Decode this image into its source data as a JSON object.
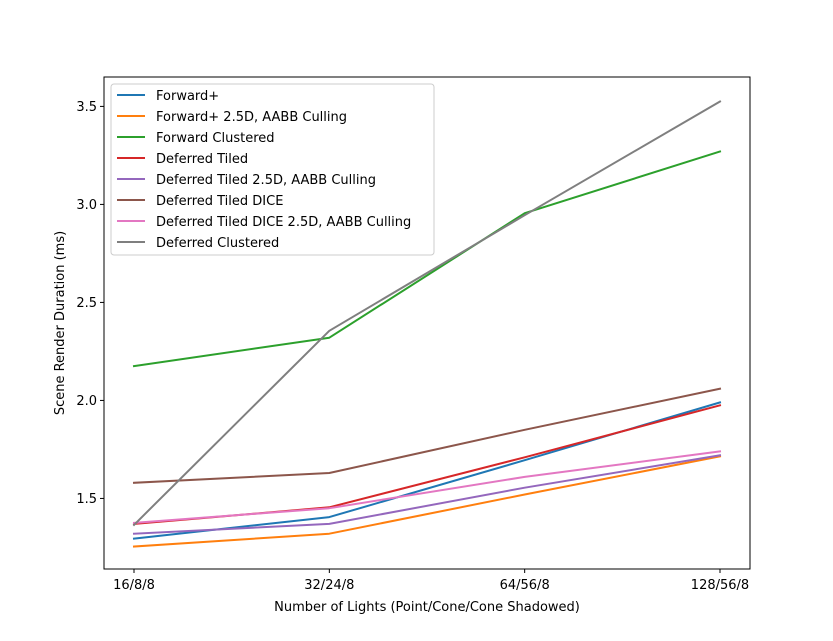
{
  "chart_data": {
    "type": "line",
    "categories": [
      "16/8/8",
      "32/24/8",
      "64/56/8",
      "128/56/8"
    ],
    "xlabel": "Number of Lights (Point/Cone/Cone Shadowed)",
    "ylabel": "Scene Render Duration (ms)",
    "ylim": [
      1.14,
      3.65
    ],
    "yticks": [
      1.5,
      2.0,
      2.5,
      3.0,
      3.5
    ],
    "ytick_labels": [
      "1.5",
      "2.0",
      "2.5",
      "3.0",
      "3.5"
    ],
    "grid": false,
    "legend_position": "top-left",
    "series": [
      {
        "name": "Forward+",
        "color": "#1f77b4",
        "values": [
          1.295,
          1.405,
          1.695,
          1.99
        ]
      },
      {
        "name": "Forward+ 2.5D, AABB Culling",
        "color": "#ff7f0e",
        "values": [
          1.255,
          1.32,
          1.52,
          1.715
        ]
      },
      {
        "name": "Forward Clustered",
        "color": "#2ca02c",
        "values": [
          2.175,
          2.32,
          2.955,
          3.27
        ]
      },
      {
        "name": "Deferred Tiled",
        "color": "#d62728",
        "values": [
          1.37,
          1.455,
          1.71,
          1.975
        ]
      },
      {
        "name": "Deferred Tiled 2.5D, AABB Culling",
        "color": "#9467bd",
        "values": [
          1.32,
          1.37,
          1.555,
          1.72
        ]
      },
      {
        "name": "Deferred Tiled DICE",
        "color": "#8c564b",
        "values": [
          1.58,
          1.63,
          1.85,
          2.06
        ]
      },
      {
        "name": "Deferred Tiled DICE 2.5D, AABB Culling",
        "color": "#e377c2",
        "values": [
          1.375,
          1.45,
          1.61,
          1.74
        ]
      },
      {
        "name": "Deferred Clustered",
        "color": "#7f7f7f",
        "values": [
          1.365,
          2.355,
          2.945,
          3.525
        ]
      }
    ]
  }
}
